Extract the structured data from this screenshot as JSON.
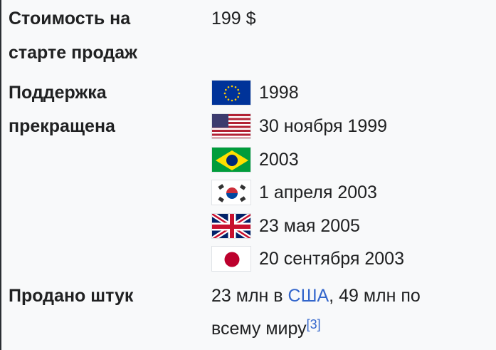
{
  "rows": [
    {
      "label_lines": [
        "Стоимость на",
        "старте продаж"
      ],
      "value": "199 $"
    },
    {
      "label_lines": [
        "Поддержка",
        "прекращена"
      ],
      "items": [
        {
          "flag": "eu-flag-icon",
          "text": "1998"
        },
        {
          "flag": "usa-flag-icon",
          "text": "30 ноября 1999"
        },
        {
          "flag": "brazil-flag-icon",
          "text": "2003"
        },
        {
          "flag": "south-korea-flag-icon",
          "text": "1 апреля 2003"
        },
        {
          "flag": "uk-flag-icon",
          "text": "23 мая 2005"
        },
        {
          "flag": "japan-flag-icon",
          "text": "20 сентября 2003"
        }
      ]
    },
    {
      "label_lines": [
        "Продано штук"
      ],
      "value_parts": {
        "pre": "23 млн в ",
        "link": "США",
        "mid": ", 49 млн по",
        "line2": "всему миру",
        "ref": "[3]"
      }
    }
  ],
  "colors": {
    "link": "#3366cc",
    "background": "#f8f9fa",
    "text": "#202122"
  }
}
